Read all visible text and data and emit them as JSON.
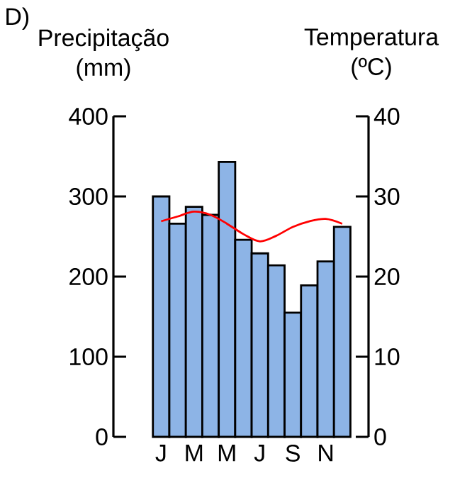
{
  "chart_data": {
    "type": "bar",
    "title": "D)",
    "ylabel": "Precipitação (mm)",
    "y2label": "Temperatura (ºC)",
    "categories": [
      "J",
      null,
      "M",
      null,
      "M",
      null,
      "J",
      null,
      "S",
      null,
      "N",
      null
    ],
    "series": [
      {
        "color": "#8db4e6",
        "values": [
          300,
          266,
          287,
          277,
          343,
          246,
          229,
          214,
          155,
          189,
          219,
          262
        ]
      },
      {
        "type": "line",
        "axis": "y2",
        "color": "#ff0000",
        "values": [
          26.9,
          27.5,
          28.1,
          27.7,
          26.6,
          25.3,
          24.4,
          25.1,
          26.2,
          26.9,
          27.2,
          26.6
        ]
      }
    ],
    "ylim": [
      0,
      400
    ],
    "yticks": [
      0,
      100,
      200,
      300,
      400
    ],
    "y2lim": [
      0,
      40
    ],
    "y2ticks": [
      0,
      10,
      20,
      30,
      40
    ]
  }
}
